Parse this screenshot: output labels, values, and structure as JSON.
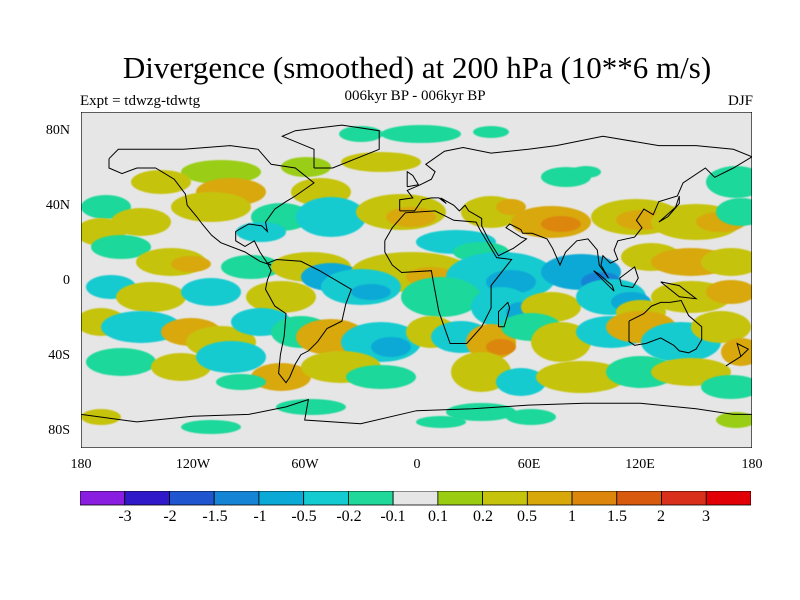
{
  "title": "Divergence (smoothed) at 200 hPa (10**6 m/s)",
  "subtitle": "006kyr BP - 006kyr BP",
  "experiment": "Expt = tdwzg-tdwtg",
  "season": "DJF",
  "lat_labels": [
    "80N",
    "40N",
    "0",
    "40S",
    "80S"
  ],
  "lon_labels": [
    "180",
    "120W",
    "60W",
    "0",
    "60E",
    "120E",
    "180"
  ],
  "colorbar": {
    "labels": [
      "-3",
      "-2",
      "-1.5",
      "-1",
      "-0.5",
      "-0.2",
      "-0.1",
      "0.1",
      "0.2",
      "0.5",
      "1",
      "1.5",
      "2",
      "3"
    ],
    "colors": [
      "#8a1ee0",
      "#2f19c8",
      "#1f55cf",
      "#1584d5",
      "#0aa9d6",
      "#13cbd0",
      "#1fd89a",
      "#e6e6e6",
      "#9acd12",
      "#c6c30c",
      "#d8a80a",
      "#dc860b",
      "#d85a0e",
      "#d8301a",
      "#e00006"
    ]
  },
  "map": {
    "background": "#e6e6e6",
    "coastline_color": "#000000"
  }
}
